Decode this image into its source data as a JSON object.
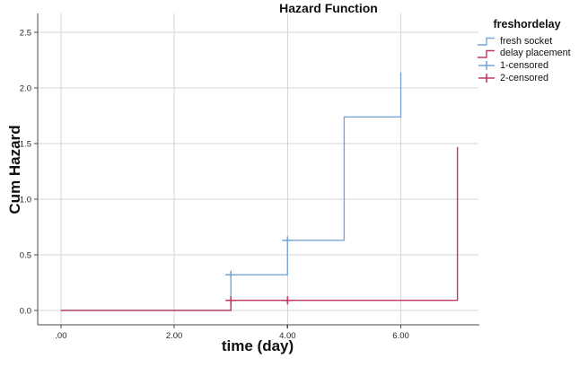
{
  "title": "Hazard Function",
  "axes": {
    "x_title": "time (day)",
    "y_title": "Cum Hazard"
  },
  "legend": {
    "title": "freshordelay",
    "items": [
      {
        "label": "fresh socket",
        "glyph": "step-line-icon",
        "color": "#7aa6d8"
      },
      {
        "label": "delay placement",
        "glyph": "step-line-icon",
        "color": "#bf3a5f"
      },
      {
        "label": "1-censored",
        "glyph": "plus-icon",
        "color": "#7aa6d8"
      },
      {
        "label": "2-censored",
        "glyph": "plus-icon",
        "color": "#bf3a5f"
      }
    ]
  },
  "chart_data": {
    "type": "line",
    "subtype": "step-function-cumulative-hazard",
    "title": "Hazard Function",
    "xlabel": "time (day)",
    "ylabel": "Cum Hazard",
    "xlim": [
      -0.41,
      7.37
    ],
    "ylim": [
      -0.13,
      2.67
    ],
    "grid": true,
    "legend_position": "top-right-outside",
    "x_ticks": {
      "values": [
        0,
        2,
        4,
        6
      ],
      "labels": [
        ".00",
        "2.00",
        "4.00",
        "6.00"
      ]
    },
    "y_ticks": {
      "values": [
        0,
        0.5,
        1,
        1.5,
        2,
        2.5
      ],
      "labels": [
        "0.0",
        "0.5",
        "1.0",
        "1.5",
        "2.0",
        "2.5"
      ]
    },
    "series": [
      {
        "name": "fresh socket",
        "type": "step",
        "color": "#7aa6d8",
        "points": [
          [
            0,
            0
          ],
          [
            3,
            0
          ],
          [
            3,
            0.32
          ],
          [
            4,
            0.32
          ],
          [
            4,
            0.63
          ],
          [
            5,
            0.63
          ],
          [
            5,
            1.74
          ],
          [
            6,
            1.74
          ],
          [
            6,
            2.14
          ]
        ]
      },
      {
        "name": "delay placement",
        "type": "step",
        "color": "#bf3a5f",
        "points": [
          [
            0,
            0
          ],
          [
            3,
            0
          ],
          [
            3,
            0.09
          ],
          [
            7,
            0.09
          ],
          [
            7,
            1.47
          ]
        ]
      },
      {
        "name": "1-censored",
        "type": "plus-markers",
        "color": "#7aa6d8",
        "points": [
          [
            3,
            0.32
          ],
          [
            4,
            0.63
          ]
        ]
      },
      {
        "name": "2-censored",
        "type": "plus-markers",
        "color": "#bf3a5f",
        "points": [
          [
            3,
            0.09
          ],
          [
            4,
            0.09
          ]
        ]
      }
    ]
  },
  "colors": {
    "background": "#ffffff",
    "grid": "#d6d6d6",
    "axis": "#4a4a4a",
    "tick_text": "#262626",
    "series_blue": "#7aa6d8",
    "series_red": "#bf3a5f"
  }
}
